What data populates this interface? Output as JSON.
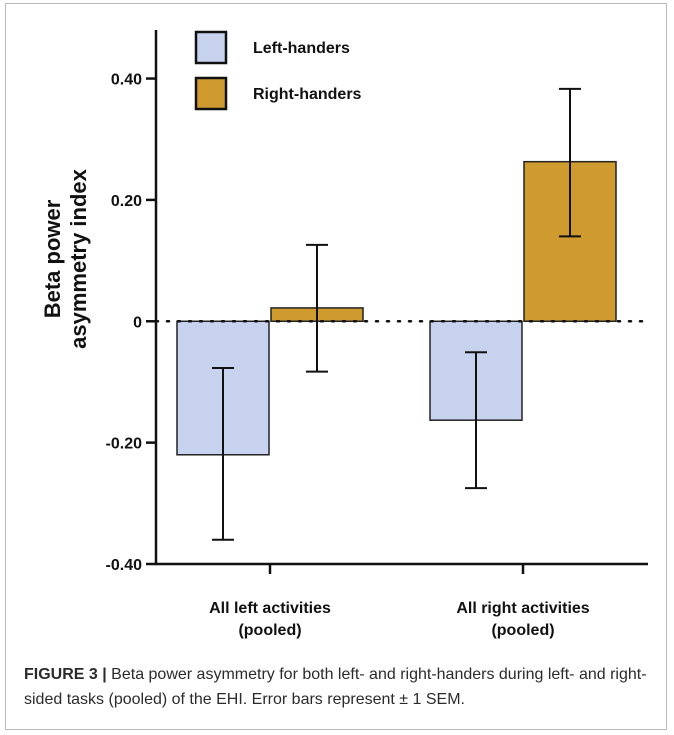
{
  "figure": {
    "label": "FIGURE 3 |",
    "caption": "Beta power asymmetry for both left- and right-handers during left- and right-sided tasks (pooled) of the EHI. Error bars represent ± 1 SEM."
  },
  "chart_data": {
    "type": "bar",
    "ylabel": "Beta power asymmetry index",
    "ylim": [
      -0.4,
      0.48
    ],
    "y_ticks": [
      -0.4,
      -0.2,
      0,
      0.2,
      0.4
    ],
    "y_tick_labels": [
      "-0.40",
      "-0.20",
      "0",
      "0.20",
      "0.40"
    ],
    "categories": [
      "All left activities (pooled)",
      "All right activities (pooled)"
    ],
    "category_labels": [
      [
        "All left activities",
        "(pooled)"
      ],
      [
        "All right activities",
        "(pooled)"
      ]
    ],
    "series": [
      {
        "name": "Left-handers",
        "color": "#c7d3ee",
        "values": [
          -0.22,
          -0.163
        ],
        "error_low": [
          -0.36,
          -0.275
        ],
        "error_high": [
          -0.077,
          -0.051
        ]
      },
      {
        "name": "Right-handers",
        "color": "#cf9a2e",
        "values": [
          0.022,
          0.263
        ],
        "error_low": [
          -0.083,
          0.14
        ],
        "error_high": [
          0.126,
          0.383
        ]
      }
    ],
    "zero_line": "dotted",
    "grid": false,
    "legend_position": "top-left"
  }
}
